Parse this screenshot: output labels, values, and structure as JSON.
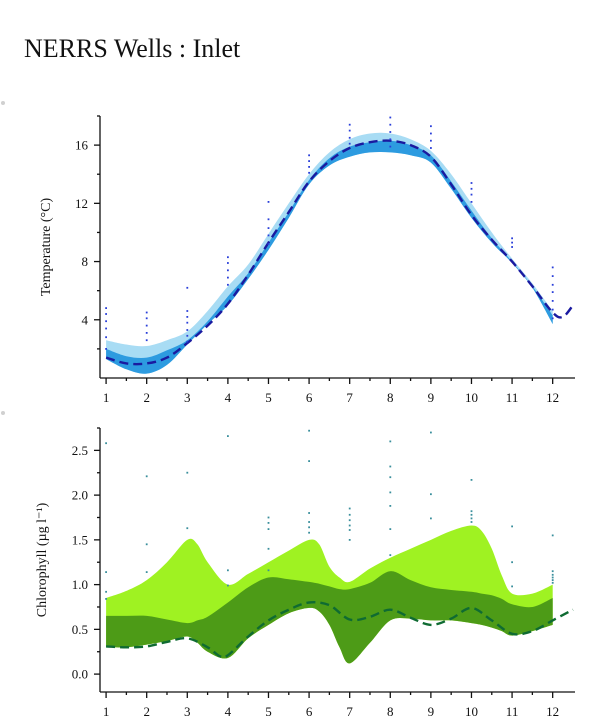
{
  "title": "NERRS Wells : Inlet",
  "chart_data": [
    {
      "type": "line",
      "ylabel": "Temperature (°C)",
      "xlabel": "",
      "x_ticks": [
        1,
        2,
        3,
        4,
        5,
        6,
        7,
        8,
        9,
        10,
        11,
        12
      ],
      "xlim": [
        0.85,
        12.55
      ],
      "ylim": [
        0,
        18
      ],
      "y_ticks": [
        4,
        8,
        12,
        16
      ],
      "grid": false,
      "colors": {
        "outer": "#a8dcf4",
        "inner": "#2d9be0",
        "line": "#1a1aa0",
        "dots": "#2a3fd9"
      },
      "series": [
        {
          "role": "outer-band",
          "x": [
            1,
            1.5,
            2,
            2.5,
            3,
            3.5,
            4,
            4.5,
            5,
            5.5,
            6,
            6.5,
            7,
            7.5,
            8,
            8.5,
            9,
            9.5,
            10,
            10.5,
            11,
            11.5,
            12
          ],
          "y_low": [
            1.3,
            0.6,
            0.3,
            0.9,
            2.3,
            3.7,
            5.0,
            6.8,
            8.8,
            11.0,
            13.3,
            14.6,
            15.2,
            15.5,
            15.5,
            15.3,
            14.8,
            13.0,
            11.0,
            9.3,
            7.9,
            6.2,
            3.7
          ],
          "y_high": [
            2.6,
            2.3,
            2.2,
            2.6,
            3.2,
            4.6,
            6.3,
            7.8,
            9.9,
            12.0,
            14.0,
            15.5,
            16.4,
            16.8,
            16.8,
            16.4,
            15.6,
            14.0,
            12.0,
            10.0,
            8.2,
            6.5,
            4.6
          ]
        },
        {
          "role": "inner-band",
          "x": [
            1,
            1.5,
            2,
            2.5,
            3,
            3.5,
            4,
            4.5,
            5,
            5.5,
            6,
            6.5,
            7,
            7.5,
            8,
            8.5,
            9,
            9.5,
            10,
            10.5,
            11,
            11.5,
            12
          ],
          "y_low": [
            1.3,
            0.6,
            0.3,
            0.9,
            2.3,
            3.7,
            5.0,
            6.8,
            8.8,
            11.0,
            13.3,
            14.6,
            15.2,
            15.5,
            15.5,
            15.3,
            14.8,
            13.0,
            11.0,
            9.3,
            7.9,
            6.2,
            3.7
          ],
          "y_high": [
            2.0,
            1.5,
            1.4,
            1.9,
            2.6,
            3.9,
            5.6,
            7.2,
            9.3,
            11.4,
            13.6,
            15.1,
            15.9,
            16.2,
            16.3,
            16.0,
            15.3,
            13.5,
            11.5,
            9.6,
            8.0,
            6.3,
            4.3
          ]
        },
        {
          "role": "mean-dashed",
          "x": [
            1,
            1.5,
            2,
            2.5,
            3,
            3.5,
            4,
            4.5,
            5,
            5.5,
            6,
            6.5,
            7,
            7.5,
            8,
            8.5,
            9,
            9.5,
            10,
            10.5,
            11,
            11.5,
            12,
            12.25,
            12.5
          ],
          "y": [
            1.4,
            1.0,
            1.0,
            1.4,
            2.4,
            3.6,
            5.1,
            7.1,
            9.3,
            11.4,
            13.5,
            14.9,
            15.8,
            16.2,
            16.3,
            16.0,
            15.2,
            13.3,
            11.2,
            9.5,
            8.0,
            6.3,
            4.5,
            4.2,
            5.0
          ]
        },
        {
          "role": "observations",
          "points": [
            [
              1,
              4.8
            ],
            [
              1,
              4.4
            ],
            [
              1,
              3.9
            ],
            [
              1,
              3.4
            ],
            [
              1,
              2.8
            ],
            [
              1,
              2.0
            ],
            [
              2,
              4.5
            ],
            [
              2,
              4.1
            ],
            [
              2,
              3.6
            ],
            [
              2,
              3.1
            ],
            [
              2,
              2.6
            ],
            [
              3,
              6.2
            ],
            [
              3,
              4.6
            ],
            [
              3,
              4.2
            ],
            [
              3,
              3.8
            ],
            [
              3,
              3.3
            ],
            [
              3,
              2.9
            ],
            [
              3,
              2.5
            ],
            [
              4,
              8.3
            ],
            [
              4,
              7.9
            ],
            [
              4,
              7.4
            ],
            [
              4,
              6.9
            ],
            [
              4,
              6.4
            ],
            [
              5,
              12.1
            ],
            [
              5,
              10.9
            ],
            [
              5,
              10.3
            ],
            [
              5,
              9.8
            ],
            [
              5,
              9.2
            ],
            [
              6,
              15.3
            ],
            [
              6,
              14.9
            ],
            [
              6,
              14.5
            ],
            [
              6,
              14.1
            ],
            [
              7,
              17.4
            ],
            [
              7,
              17.0
            ],
            [
              7,
              16.5
            ],
            [
              7,
              16.1
            ],
            [
              8,
              17.9
            ],
            [
              8,
              17.4
            ],
            [
              8,
              16.9
            ],
            [
              8,
              16.4
            ],
            [
              8,
              15.9
            ],
            [
              9,
              17.3
            ],
            [
              9,
              16.8
            ],
            [
              9,
              16.3
            ],
            [
              9,
              15.8
            ],
            [
              10,
              13.4
            ],
            [
              10,
              13.0
            ],
            [
              10,
              12.6
            ],
            [
              10,
              12.1
            ],
            [
              11,
              9.6
            ],
            [
              11,
              9.3
            ],
            [
              11,
              9.0
            ],
            [
              12,
              7.6
            ],
            [
              12,
              7.0
            ],
            [
              12,
              6.4
            ],
            [
              12,
              5.9
            ],
            [
              12,
              5.3
            ],
            [
              12,
              4.7
            ],
            [
              12,
              4.1
            ]
          ]
        }
      ]
    },
    {
      "type": "line",
      "ylabel": "Chlorophyll (µg l⁻¹)",
      "xlabel": "",
      "x_ticks": [
        1,
        2,
        3,
        4,
        5,
        6,
        7,
        8,
        9,
        10,
        11,
        12
      ],
      "xlim": [
        0.85,
        12.55
      ],
      "ylim": [
        -0.2,
        2.75
      ],
      "y_ticks": [
        0.0,
        0.5,
        1.0,
        1.5,
        2.0,
        2.5
      ],
      "y_tick_labels": [
        "0.0",
        "0.5",
        "1.0",
        "1.5",
        "2.0",
        "2.5"
      ],
      "grid": false,
      "colors": {
        "outer": "#9ff222",
        "inner": "#4d9b17",
        "line": "#0f6b32",
        "dots": "#3a8f9c"
      },
      "series": [
        {
          "role": "outer-band",
          "x": [
            1,
            1.5,
            2,
            2.5,
            3,
            3.25,
            3.5,
            4,
            4.5,
            5,
            5.5,
            6,
            6.25,
            6.5,
            6.75,
            7,
            7.5,
            8,
            8.5,
            9,
            9.5,
            10,
            10.25,
            10.5,
            10.75,
            11,
            11.5,
            12
          ],
          "y_low": [
            0.3,
            0.3,
            0.33,
            0.37,
            0.42,
            0.35,
            0.25,
            0.18,
            0.4,
            0.55,
            0.68,
            0.74,
            0.7,
            0.55,
            0.3,
            0.12,
            0.35,
            0.6,
            0.62,
            0.6,
            0.6,
            0.57,
            0.55,
            0.52,
            0.48,
            0.43,
            0.48,
            0.55
          ],
          "y_high": [
            0.85,
            0.93,
            1.05,
            1.25,
            1.5,
            1.45,
            1.25,
            1.0,
            1.12,
            1.25,
            1.38,
            1.5,
            1.45,
            1.2,
            1.08,
            1.03,
            1.18,
            1.3,
            1.4,
            1.5,
            1.6,
            1.66,
            1.6,
            1.4,
            1.1,
            0.9,
            0.9,
            1.0
          ]
        },
        {
          "role": "inner-band",
          "x": [
            1,
            1.5,
            2,
            2.5,
            3,
            3.25,
            3.5,
            4,
            4.5,
            5,
            5.5,
            6,
            6.25,
            6.5,
            6.75,
            7,
            7.5,
            8,
            8.5,
            9,
            9.5,
            10,
            10.25,
            10.5,
            10.75,
            11,
            11.5,
            12
          ],
          "y_low": [
            0.3,
            0.3,
            0.33,
            0.37,
            0.42,
            0.35,
            0.25,
            0.18,
            0.4,
            0.55,
            0.68,
            0.74,
            0.7,
            0.55,
            0.3,
            0.12,
            0.35,
            0.6,
            0.62,
            0.6,
            0.6,
            0.57,
            0.55,
            0.52,
            0.48,
            0.43,
            0.48,
            0.55
          ],
          "y_high": [
            0.65,
            0.65,
            0.65,
            0.61,
            0.57,
            0.6,
            0.64,
            0.8,
            0.97,
            1.08,
            1.06,
            1.03,
            1.01,
            0.98,
            0.95,
            0.95,
            1.02,
            1.15,
            1.05,
            0.97,
            0.94,
            0.92,
            0.9,
            0.88,
            0.84,
            0.78,
            0.75,
            0.85
          ]
        },
        {
          "role": "mean-dashed",
          "x": [
            1,
            1.5,
            2,
            2.5,
            3,
            3.5,
            3.8,
            4,
            4.5,
            5,
            5.5,
            6,
            6.5,
            7,
            7.5,
            8,
            8.5,
            9,
            9.5,
            10,
            10.5,
            11,
            11.5,
            12,
            12.5
          ],
          "y": [
            0.31,
            0.3,
            0.31,
            0.36,
            0.4,
            0.3,
            0.2,
            0.21,
            0.42,
            0.6,
            0.72,
            0.8,
            0.77,
            0.61,
            0.64,
            0.72,
            0.63,
            0.55,
            0.62,
            0.74,
            0.6,
            0.45,
            0.48,
            0.6,
            0.72
          ]
        },
        {
          "role": "observations",
          "points": [
            [
              1,
              2.58
            ],
            [
              1,
              1.14
            ],
            [
              1,
              0.92
            ],
            [
              1,
              0.84
            ],
            [
              2,
              2.21
            ],
            [
              2,
              1.45
            ],
            [
              2,
              1.14
            ],
            [
              3,
              2.25
            ],
            [
              3,
              1.63
            ],
            [
              4,
              2.66
            ],
            [
              4,
              1.16
            ],
            [
              4,
              0.99
            ],
            [
              5,
              1.75
            ],
            [
              5,
              1.69
            ],
            [
              5,
              1.62
            ],
            [
              5,
              1.4
            ],
            [
              5,
              1.16
            ],
            [
              6,
              2.72
            ],
            [
              6,
              2.38
            ],
            [
              6,
              1.8
            ],
            [
              6,
              1.7
            ],
            [
              6,
              1.64
            ],
            [
              6,
              1.58
            ],
            [
              7,
              1.85
            ],
            [
              7,
              1.78
            ],
            [
              7,
              1.72
            ],
            [
              7,
              1.66
            ],
            [
              7,
              1.61
            ],
            [
              7,
              1.5
            ],
            [
              8,
              2.6
            ],
            [
              8,
              2.32
            ],
            [
              8,
              2.2
            ],
            [
              8,
              2.03
            ],
            [
              8,
              1.88
            ],
            [
              8,
              1.62
            ],
            [
              8,
              1.33
            ],
            [
              9,
              2.7
            ],
            [
              9,
              2.01
            ],
            [
              9,
              1.74
            ],
            [
              10,
              2.17
            ],
            [
              10,
              1.82
            ],
            [
              10,
              1.78
            ],
            [
              10,
              1.74
            ],
            [
              10,
              1.7
            ],
            [
              11,
              1.65
            ],
            [
              11,
              1.25
            ],
            [
              11,
              0.98
            ],
            [
              12,
              1.55
            ],
            [
              12,
              1.15
            ],
            [
              12,
              1.11
            ],
            [
              12,
              1.08
            ],
            [
              12,
              1.05
            ],
            [
              12,
              1.02
            ]
          ]
        }
      ]
    }
  ]
}
